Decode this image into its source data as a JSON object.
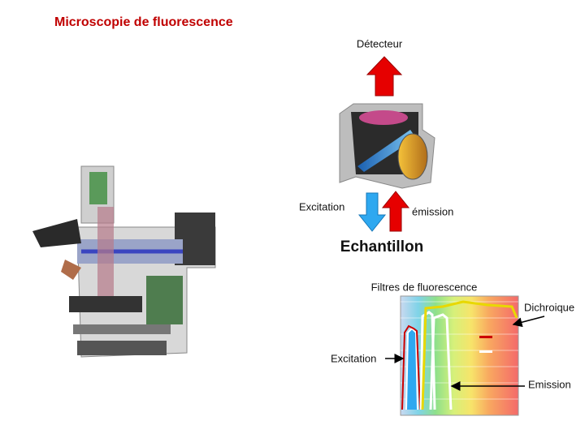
{
  "title": "Microscopie de fluorescence",
  "cube": {
    "detector": "Détecteur",
    "excitation": "Excitation",
    "emission": "émission",
    "sample": "Echantillon"
  },
  "spectrum": {
    "title": "Filtres de fluorescence",
    "dichroic": "Dichroique",
    "excitation": "Excitation",
    "emission": "Emission"
  }
}
